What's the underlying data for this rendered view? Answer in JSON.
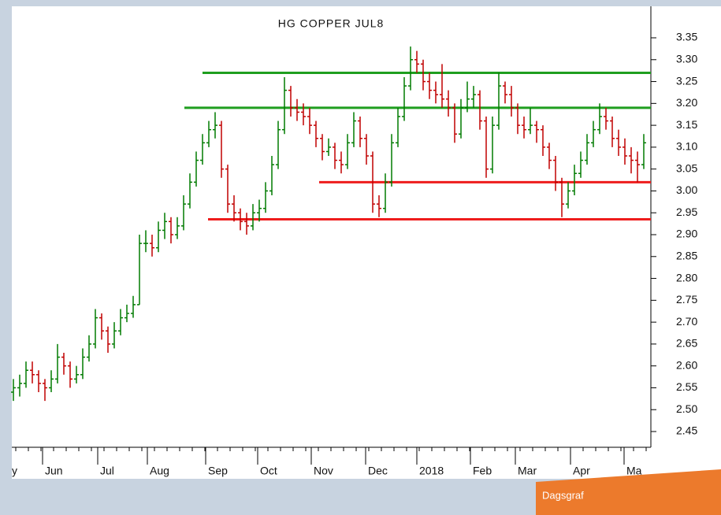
{
  "chart_data": {
    "type": "ohlc",
    "title": "HG COPPER JUL8",
    "up_color": "#007a00",
    "down_color": "#c00000",
    "ylim": [
      2.414,
      3.422
    ],
    "yticks": [
      {
        "value": 2.45,
        "label": "2.45"
      },
      {
        "value": 2.5,
        "label": "2.50"
      },
      2.55,
      {
        "value": 2.6,
        "label": "2.60"
      },
      2.65,
      {
        "value": 2.7,
        "label": "2.70"
      },
      2.75,
      {
        "value": 2.8,
        "label": "2.80"
      },
      2.85,
      {
        "value": 2.9,
        "label": "2.90"
      },
      2.95,
      {
        "value": 3.0,
        "label": "3.00"
      },
      3.05,
      {
        "value": 3.1,
        "label": "3.10"
      },
      3.15,
      {
        "value": 3.2,
        "label": "3.20"
      },
      3.25,
      {
        "value": 3.3,
        "label": "3.30"
      },
      3.35
    ],
    "x_labels": [
      "y",
      "Jun",
      "Jul",
      "Aug",
      "Sep",
      "Oct",
      "Nov",
      "Dec",
      "2018",
      "Feb",
      "Mar",
      "Apr",
      "Ma"
    ],
    "levels": [
      {
        "value": 3.27,
        "color": "#1f9e1f"
      },
      {
        "value": 3.19,
        "color": "#1f9e1f"
      },
      {
        "value": 3.02,
        "color": "#ee1c1c"
      },
      {
        "value": 2.935,
        "color": "#ee1c1c"
      }
    ],
    "bars": [
      [
        2.54,
        2.57,
        2.52,
        2.55
      ],
      [
        2.55,
        2.58,
        2.53,
        2.56
      ],
      [
        2.56,
        2.61,
        2.55,
        2.59
      ],
      [
        2.59,
        2.61,
        2.56,
        2.58
      ],
      [
        2.58,
        2.59,
        2.54,
        2.56
      ],
      [
        2.56,
        2.57,
        2.52,
        2.55
      ],
      [
        2.55,
        2.59,
        2.54,
        2.57
      ],
      [
        2.57,
        2.65,
        2.56,
        2.62
      ],
      [
        2.62,
        2.63,
        2.58,
        2.6
      ],
      [
        2.6,
        2.61,
        2.55,
        2.57
      ],
      [
        2.57,
        2.6,
        2.56,
        2.58
      ],
      [
        2.58,
        2.64,
        2.57,
        2.62
      ],
      [
        2.62,
        2.67,
        2.61,
        2.65
      ],
      [
        2.65,
        2.73,
        2.64,
        2.71
      ],
      [
        2.71,
        2.72,
        2.66,
        2.68
      ],
      [
        2.68,
        2.69,
        2.63,
        2.65
      ],
      [
        2.65,
        2.7,
        2.64,
        2.68
      ],
      [
        2.68,
        2.73,
        2.67,
        2.71
      ],
      [
        2.71,
        2.74,
        2.7,
        2.72
      ],
      [
        2.72,
        2.76,
        2.71,
        2.74
      ],
      [
        2.74,
        2.9,
        2.74,
        2.88
      ],
      [
        2.88,
        2.91,
        2.86,
        2.88
      ],
      [
        2.88,
        2.9,
        2.85,
        2.87
      ],
      [
        2.87,
        2.93,
        2.86,
        2.91
      ],
      [
        2.91,
        2.95,
        2.89,
        2.93
      ],
      [
        2.93,
        2.94,
        2.88,
        2.9
      ],
      [
        2.9,
        2.94,
        2.89,
        2.92
      ],
      [
        2.92,
        2.99,
        2.91,
        2.97
      ],
      [
        2.97,
        3.04,
        2.96,
        3.02
      ],
      [
        3.02,
        3.09,
        3.01,
        3.07
      ],
      [
        3.07,
        3.13,
        3.06,
        3.11
      ],
      [
        3.11,
        3.16,
        3.1,
        3.14
      ],
      [
        3.14,
        3.18,
        3.12,
        3.15
      ],
      [
        3.15,
        3.16,
        3.03,
        3.05
      ],
      [
        3.05,
        3.06,
        2.95,
        2.97
      ],
      [
        2.97,
        2.99,
        2.93,
        2.95
      ],
      [
        2.95,
        2.96,
        2.91,
        2.93
      ],
      [
        2.93,
        2.95,
        2.9,
        2.92
      ],
      [
        2.92,
        2.97,
        2.91,
        2.95
      ],
      [
        2.95,
        2.98,
        2.93,
        2.96
      ],
      [
        2.96,
        3.02,
        2.95,
        3.0
      ],
      [
        3.0,
        3.08,
        2.99,
        3.06
      ],
      [
        3.06,
        3.16,
        3.05,
        3.14
      ],
      [
        3.14,
        3.26,
        3.13,
        3.23
      ],
      [
        3.23,
        3.24,
        3.17,
        3.19
      ],
      [
        3.19,
        3.21,
        3.16,
        3.18
      ],
      [
        3.18,
        3.2,
        3.15,
        3.17
      ],
      [
        3.17,
        3.19,
        3.13,
        3.15
      ],
      [
        3.15,
        3.16,
        3.1,
        3.12
      ],
      [
        3.12,
        3.13,
        3.07,
        3.09
      ],
      [
        3.09,
        3.12,
        3.08,
        3.1
      ],
      [
        3.1,
        3.11,
        3.05,
        3.07
      ],
      [
        3.07,
        3.09,
        3.04,
        3.06
      ],
      [
        3.06,
        3.13,
        3.05,
        3.11
      ],
      [
        3.11,
        3.18,
        3.1,
        3.16
      ],
      [
        3.16,
        3.17,
        3.1,
        3.12
      ],
      [
        3.12,
        3.13,
        3.06,
        3.08
      ],
      [
        3.08,
        3.09,
        2.95,
        2.97
      ],
      [
        2.97,
        2.99,
        2.94,
        2.96
      ],
      [
        2.96,
        3.04,
        2.95,
        3.02
      ],
      [
        3.02,
        3.13,
        3.01,
        3.11
      ],
      [
        3.11,
        3.19,
        3.1,
        3.17
      ],
      [
        3.17,
        3.26,
        3.16,
        3.24
      ],
      [
        3.24,
        3.33,
        3.23,
        3.3
      ],
      [
        3.3,
        3.32,
        3.27,
        3.29
      ],
      [
        3.29,
        3.3,
        3.23,
        3.25
      ],
      [
        3.25,
        3.27,
        3.21,
        3.23
      ],
      [
        3.23,
        3.25,
        3.2,
        3.22
      ],
      [
        3.22,
        3.29,
        3.19,
        3.21
      ],
      [
        3.21,
        3.23,
        3.17,
        3.19
      ],
      [
        3.19,
        3.2,
        3.11,
        3.13
      ],
      [
        3.13,
        3.21,
        3.12,
        3.19
      ],
      [
        3.19,
        3.25,
        3.18,
        3.21
      ],
      [
        3.21,
        3.24,
        3.19,
        3.22
      ],
      [
        3.22,
        3.23,
        3.14,
        3.16
      ],
      [
        3.16,
        3.17,
        3.03,
        3.05
      ],
      [
        3.05,
        3.17,
        3.04,
        3.15
      ],
      [
        3.15,
        3.27,
        3.14,
        3.24
      ],
      [
        3.24,
        3.25,
        3.2,
        3.22
      ],
      [
        3.22,
        3.24,
        3.17,
        3.19
      ],
      [
        3.19,
        3.2,
        3.13,
        3.15
      ],
      [
        3.15,
        3.17,
        3.12,
        3.14
      ],
      [
        3.14,
        3.19,
        3.13,
        3.15
      ],
      [
        3.15,
        3.16,
        3.11,
        3.14
      ],
      [
        3.14,
        3.15,
        3.08,
        3.1
      ],
      [
        3.1,
        3.11,
        3.05,
        3.07
      ],
      [
        3.07,
        3.08,
        3.0,
        3.02
      ],
      [
        3.02,
        3.03,
        2.94,
        2.97
      ],
      [
        2.97,
        3.02,
        2.96,
        3.0
      ],
      [
        3.0,
        3.06,
        2.99,
        3.04
      ],
      [
        3.04,
        3.09,
        3.03,
        3.07
      ],
      [
        3.07,
        3.13,
        3.06,
        3.11
      ],
      [
        3.11,
        3.16,
        3.1,
        3.14
      ],
      [
        3.14,
        3.2,
        3.13,
        3.17
      ],
      [
        3.17,
        3.19,
        3.14,
        3.16
      ],
      [
        3.16,
        3.17,
        3.1,
        3.12
      ],
      [
        3.12,
        3.14,
        3.08,
        3.1
      ],
      [
        3.1,
        3.12,
        3.06,
        3.08
      ],
      [
        3.08,
        3.1,
        3.04,
        3.07
      ],
      [
        3.07,
        3.09,
        3.02,
        3.06
      ],
      [
        3.06,
        3.13,
        3.05,
        3.11
      ]
    ]
  },
  "badge": "Dagsgraf"
}
